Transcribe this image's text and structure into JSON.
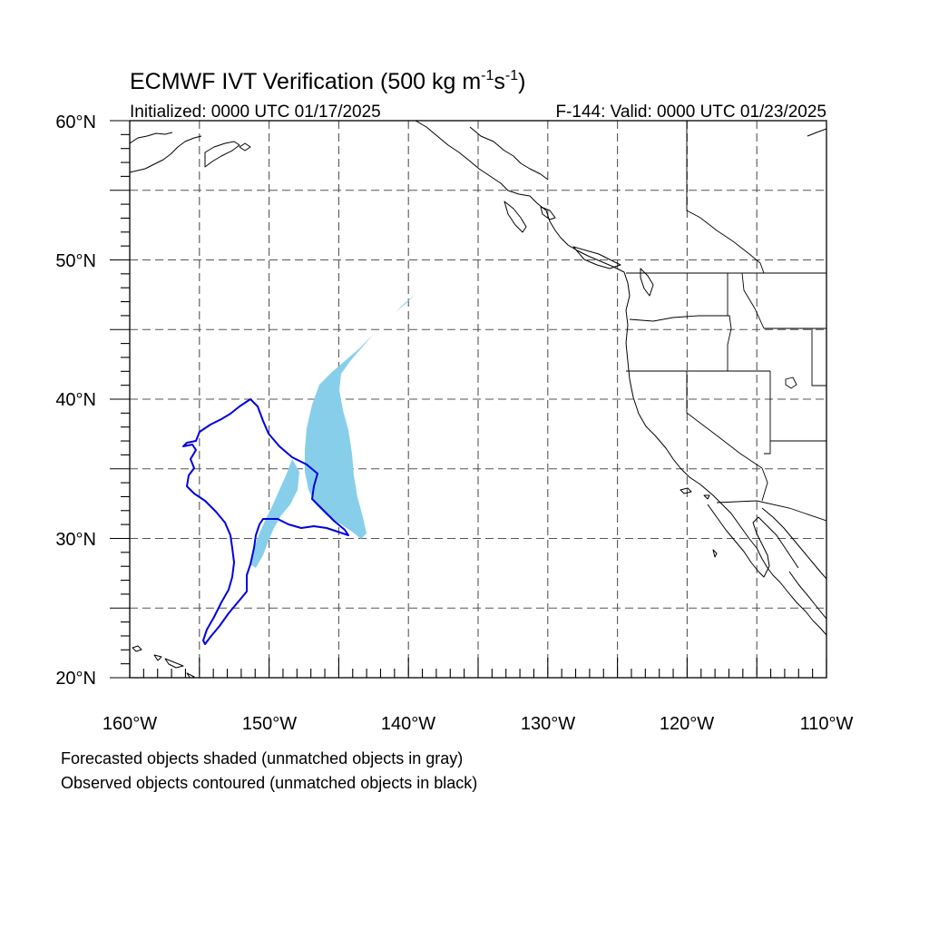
{
  "title": {
    "main": "ECMWF IVT Verification (500 kg m",
    "sup1": "-1",
    "mid": "s",
    "sup2": "-1",
    "end": ")"
  },
  "subtitle": {
    "left": "Initialized: 0000 UTC 01/17/2025",
    "right": "F-144: Valid: 0000 UTC 01/23/2025"
  },
  "axes": {
    "lon_labels": [
      "160°W",
      "150°W",
      "140°W",
      "130°W",
      "120°W",
      "110°W"
    ],
    "lat_labels": [
      "20°N",
      "30°N",
      "40°N",
      "50°N",
      "60°N"
    ],
    "lon_range": [
      -160,
      -110
    ],
    "lat_range": [
      20,
      60
    ],
    "grid": "dashed, every 5 degrees"
  },
  "footnote": {
    "line1": "Forecasted objects shaded (unmatched objects in gray)",
    "line2": "Observed objects contoured (unmatched objects in black)"
  },
  "colors": {
    "forecast_fill": "#87ceeb",
    "observed_contour": "#0000e0",
    "coastline": "#000000",
    "grid": "#555555"
  }
}
